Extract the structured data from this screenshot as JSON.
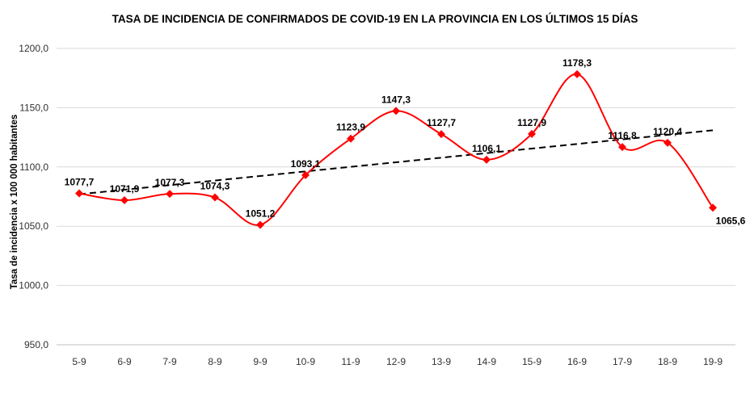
{
  "chart_data": {
    "type": "line",
    "title": "TASA DE INCIDENCIA  DE CONFIRMADOS DE COVID-19 EN LA PROVINCIA EN LOS ÚLTIMOS 15 DÍAS",
    "xlabel": "",
    "ylabel": "Tasa de incidencia  x 100 000 habitantes",
    "categories": [
      "5-9",
      "6-9",
      "7-9",
      "8-9",
      "9-9",
      "10-9",
      "11-9",
      "12-9",
      "13-9",
      "14-9",
      "15-9",
      "16-9",
      "17-9",
      "18-9",
      "19-9"
    ],
    "series": [
      {
        "values": [
          1077.7,
          1071.9,
          1077.3,
          1074.3,
          1051.2,
          1093.1,
          1123.9,
          1147.3,
          1127.7,
          1106.1,
          1127.9,
          1178.3,
          1116.8,
          1120.4,
          1065.6
        ],
        "labels": [
          "1077,7",
          "1071,9",
          "1077,3",
          "1074,3",
          "1051,2",
          "1093,1",
          "1123,9",
          "1147,3",
          "1127,7",
          "1106,1",
          "1127,9",
          "1178,3",
          "1116,8",
          "1120,4",
          "1065,6"
        ],
        "color": "#ff0000",
        "marker": "diamond",
        "smooth": true
      }
    ],
    "trendline": {
      "type": "linear",
      "style": "dashed",
      "color": "#000000"
    },
    "ylim": [
      950,
      1200
    ],
    "yticks": [
      950,
      1000,
      1050,
      1100,
      1150,
      1200
    ],
    "ytick_labels": [
      "950,0",
      "1000,0",
      "1050,0",
      "1100,0",
      "1150,0",
      "1200,0"
    ],
    "grid": true,
    "legend": "none"
  }
}
